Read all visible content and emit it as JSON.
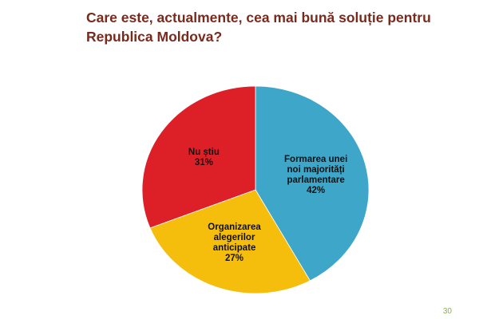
{
  "chart_data": {
    "type": "pie",
    "title": "Care este, actualmente, cea mai bună soluție pentru Republica Moldova?",
    "categories": [
      "Formarea unei noi majorități parlamentare",
      "Organizarea alegerilor anticipate",
      "Nu știu"
    ],
    "values": [
      42,
      27,
      31
    ],
    "value_labels": [
      "42%",
      "27%",
      "31%"
    ],
    "colors": [
      "#3ea6c8",
      "#f5bd0c",
      "#dd1f27"
    ],
    "page_number": "30"
  }
}
